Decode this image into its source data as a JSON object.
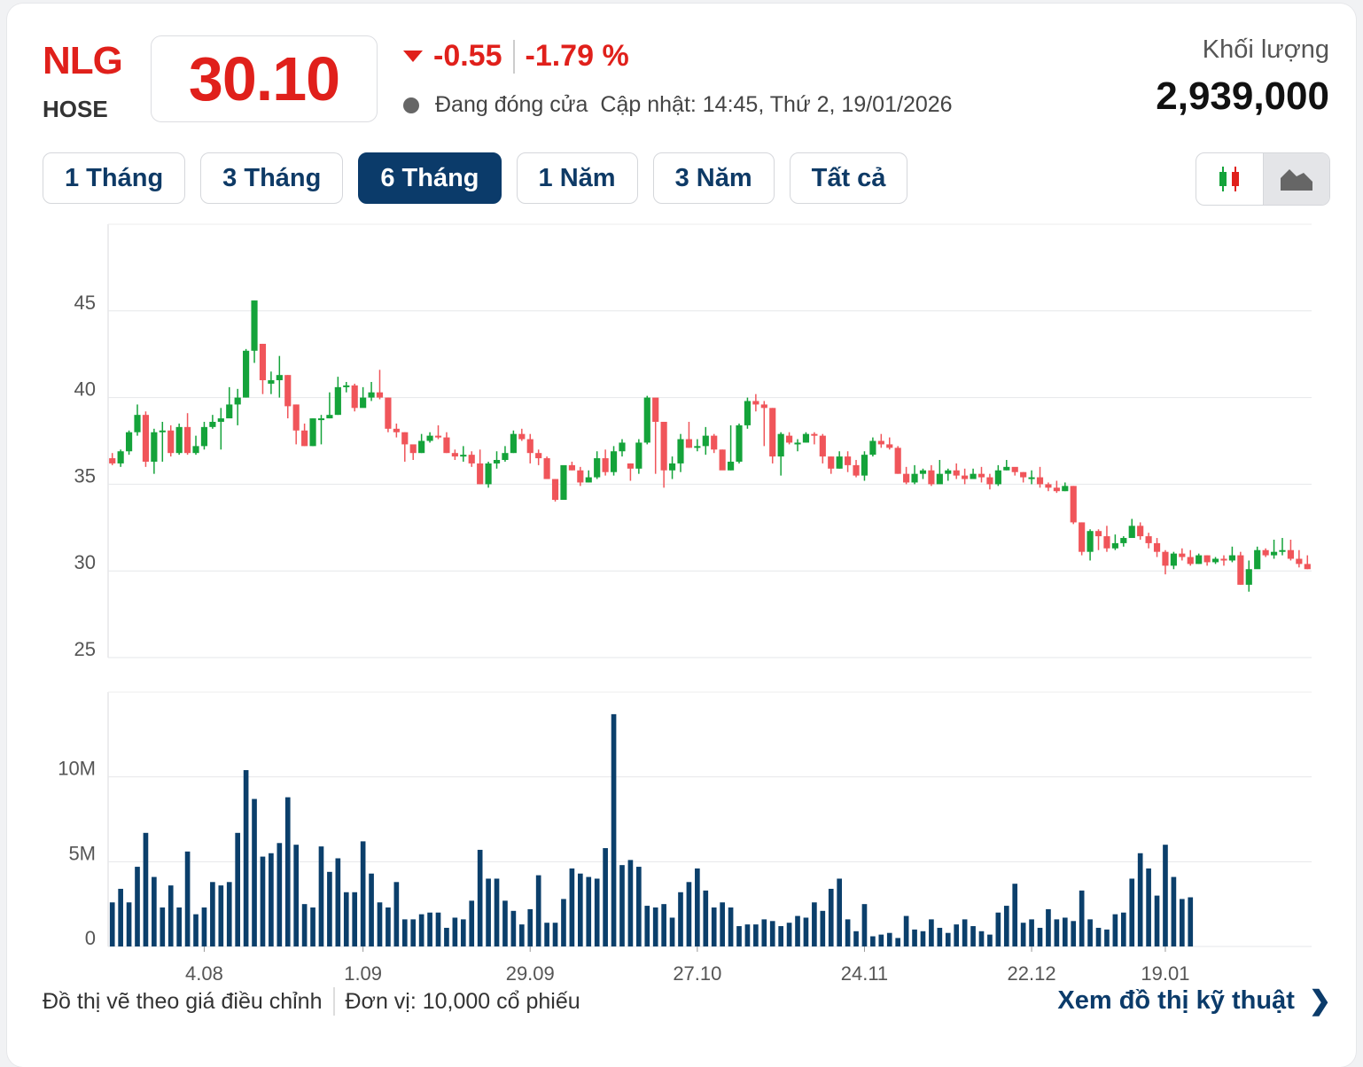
{
  "header": {
    "ticker": "NLG",
    "exchange": "HOSE",
    "price": "30.10",
    "change": "-0.55",
    "change_pct": "-1.79 %",
    "status": "Đang đóng cửa",
    "updated": "Cập nhật: 14:45, Thứ 2, 19/01/2026",
    "volume_label": "Khối lượng",
    "volume_value": "2,939,000"
  },
  "tabs": [
    {
      "label": "1 Tháng",
      "active": false
    },
    {
      "label": "3 Tháng",
      "active": false
    },
    {
      "label": "6 Tháng",
      "active": true
    },
    {
      "label": "1 Năm",
      "active": false
    },
    {
      "label": "3 Năm",
      "active": false
    },
    {
      "label": "Tất cả",
      "active": false
    }
  ],
  "toggle": {
    "candle_icon": "candlestick-icon",
    "area_icon": "area-chart-icon",
    "active": "area"
  },
  "footer": {
    "note": "Đồ thị vẽ theo giá điều chỉnh",
    "unit": "Đơn vị: 10,000 cổ phiếu",
    "tech_link": "Xem đồ thị kỹ thuật"
  },
  "colors": {
    "up": "#14a33a",
    "down": "#f0555a",
    "volume": "#0b3f6b",
    "accent": "#e0201b",
    "nav": "#0b3b6a"
  },
  "chart_data": [
    {
      "type": "candlestick",
      "yticks": [
        "45",
        "40",
        "35",
        "30",
        "25"
      ],
      "ylim": [
        25,
        50
      ],
      "xticks": [
        {
          "label": "4.08",
          "index": 11
        },
        {
          "label": "1.09",
          "index": 30
        },
        {
          "label": "29.09",
          "index": 50
        },
        {
          "label": "27.10",
          "index": 70
        },
        {
          "label": "24.11",
          "index": 90
        },
        {
          "label": "22.12",
          "index": 110
        },
        {
          "label": "19.01",
          "index": 126
        }
      ],
      "candles": [
        [
          36.5,
          36.2,
          36.8,
          36.1
        ],
        [
          36.2,
          36.9,
          37.0,
          36.0
        ],
        [
          36.9,
          38.0,
          38.1,
          36.7
        ],
        [
          38.0,
          39.0,
          39.6,
          37.8
        ],
        [
          39.0,
          36.3,
          39.2,
          36.0
        ],
        [
          36.3,
          38.0,
          38.2,
          35.6
        ],
        [
          38.0,
          38.1,
          38.6,
          36.3
        ],
        [
          38.1,
          36.8,
          38.4,
          36.6
        ],
        [
          36.8,
          38.3,
          38.5,
          36.7
        ],
        [
          38.3,
          36.8,
          39.1,
          36.7
        ],
        [
          36.8,
          37.2,
          37.8,
          36.7
        ],
        [
          37.2,
          38.3,
          38.6,
          37.0
        ],
        [
          38.3,
          38.6,
          39.0,
          38.2
        ],
        [
          38.6,
          38.8,
          39.4,
          37.0
        ],
        [
          38.8,
          39.6,
          40.6,
          39.2
        ],
        [
          39.6,
          40.0,
          40.5,
          38.4
        ],
        [
          40.0,
          42.7,
          42.8,
          40.0
        ],
        [
          42.7,
          45.6,
          45.6,
          42.0
        ],
        [
          43.1,
          41.0,
          43.1,
          40.2
        ],
        [
          40.8,
          41.0,
          41.5,
          40.2
        ],
        [
          41.0,
          41.3,
          42.4,
          40.0
        ],
        [
          41.3,
          39.5,
          41.3,
          38.8
        ],
        [
          39.6,
          38.1,
          39.6,
          37.3
        ],
        [
          38.1,
          37.2,
          38.5,
          37.2
        ],
        [
          37.2,
          38.8,
          38.8,
          37.2
        ],
        [
          38.8,
          38.8,
          39.0,
          37.3
        ],
        [
          38.8,
          39.0,
          40.3,
          38.8
        ],
        [
          39.0,
          40.6,
          41.2,
          39.0
        ],
        [
          40.6,
          40.7,
          40.9,
          40.3
        ],
        [
          40.7,
          39.4,
          40.8,
          39.2
        ],
        [
          39.4,
          40.0,
          40.6,
          39.6
        ],
        [
          40.0,
          40.3,
          40.9,
          39.8
        ],
        [
          40.3,
          40.0,
          41.6,
          39.9
        ],
        [
          40.0,
          38.2,
          40.0,
          38.0
        ],
        [
          38.2,
          38.0,
          38.5,
          37.7
        ],
        [
          38.0,
          37.3,
          38.0,
          36.3
        ],
        [
          37.3,
          36.8,
          37.2,
          36.4
        ],
        [
          36.8,
          37.5,
          37.9,
          36.8
        ],
        [
          37.5,
          37.8,
          38.0,
          37.4
        ],
        [
          37.8,
          37.7,
          38.4,
          37.6
        ],
        [
          37.7,
          36.8,
          38.0,
          36.8
        ],
        [
          36.8,
          36.6,
          37.0,
          36.4
        ],
        [
          36.6,
          36.7,
          37.2,
          36.3
        ],
        [
          36.7,
          36.2,
          36.9,
          36.0
        ],
        [
          36.2,
          35.0,
          37.0,
          35.0
        ],
        [
          35.0,
          36.2,
          36.3,
          34.8
        ],
        [
          36.2,
          36.4,
          36.9,
          35.9
        ],
        [
          36.4,
          36.8,
          37.2,
          36.3
        ],
        [
          36.8,
          37.9,
          38.1,
          36.8
        ],
        [
          37.9,
          37.6,
          38.2,
          37.5
        ],
        [
          37.6,
          36.8,
          37.9,
          36.2
        ],
        [
          36.8,
          36.5,
          37.0,
          36.1
        ],
        [
          36.5,
          35.3,
          36.6,
          35.3
        ],
        [
          35.3,
          34.1,
          35.3,
          34.0
        ],
        [
          34.1,
          36.1,
          36.0,
          34.1
        ],
        [
          36.1,
          35.8,
          36.3,
          35.8
        ],
        [
          35.8,
          35.1,
          36.0,
          34.9
        ],
        [
          35.1,
          35.4,
          35.8,
          35.1
        ],
        [
          35.4,
          36.5,
          36.9,
          35.3
        ],
        [
          36.5,
          35.7,
          37.0,
          35.5
        ],
        [
          35.7,
          36.9,
          37.2,
          35.5
        ],
        [
          36.9,
          37.4,
          37.6,
          36.6
        ],
        [
          36.2,
          35.9,
          36.2,
          35.2
        ],
        [
          35.9,
          37.4,
          37.6,
          35.6
        ],
        [
          37.4,
          40.0,
          40.1,
          37.3
        ],
        [
          40.0,
          38.6,
          38.9,
          35.6
        ],
        [
          38.6,
          35.8,
          38.6,
          34.8
        ],
        [
          35.8,
          36.2,
          36.6,
          35.3
        ],
        [
          36.2,
          37.6,
          37.9,
          35.7
        ],
        [
          37.6,
          37.1,
          38.6,
          37.1
        ],
        [
          37.1,
          37.2,
          37.6,
          36.9
        ],
        [
          37.2,
          37.8,
          38.3,
          36.7
        ],
        [
          37.8,
          37.0,
          37.9,
          36.8
        ],
        [
          37.0,
          35.8,
          37.0,
          35.9
        ],
        [
          35.8,
          36.3,
          38.4,
          35.8
        ],
        [
          36.3,
          38.4,
          38.5,
          36.2
        ],
        [
          38.4,
          39.8,
          40.0,
          38.2
        ],
        [
          39.8,
          39.6,
          40.2,
          39.2
        ],
        [
          39.6,
          39.4,
          39.8,
          37.2
        ],
        [
          39.4,
          36.6,
          39.4,
          36.2
        ],
        [
          36.6,
          37.9,
          38.0,
          35.5
        ],
        [
          37.8,
          37.4,
          38.0,
          37.3
        ],
        [
          37.4,
          37.4,
          37.6,
          36.9
        ],
        [
          37.4,
          37.9,
          38.0,
          37.4
        ],
        [
          37.9,
          37.8,
          38.0,
          37.3
        ],
        [
          37.8,
          36.6,
          37.9,
          36.2
        ],
        [
          36.6,
          35.9,
          36.6,
          35.6
        ],
        [
          35.9,
          36.6,
          36.9,
          35.9
        ],
        [
          36.6,
          36.1,
          36.9,
          35.7
        ],
        [
          36.1,
          35.5,
          36.4,
          35.4
        ],
        [
          35.5,
          36.7,
          36.9,
          35.2
        ],
        [
          36.7,
          37.5,
          37.7,
          36.6
        ],
        [
          37.5,
          37.3,
          37.9,
          37.1
        ],
        [
          37.3,
          37.1,
          37.7,
          37.0
        ],
        [
          37.1,
          35.6,
          37.2,
          35.6
        ],
        [
          35.6,
          35.1,
          36.0,
          35.0
        ],
        [
          35.1,
          35.6,
          36.1,
          35.0
        ],
        [
          35.6,
          35.8,
          35.9,
          35.3
        ],
        [
          35.8,
          35.0,
          36.1,
          34.9
        ],
        [
          35.0,
          35.6,
          36.4,
          35.3
        ],
        [
          35.6,
          35.8,
          35.9,
          35.2
        ],
        [
          35.8,
          35.5,
          36.2,
          35.3
        ],
        [
          35.5,
          35.3,
          35.9,
          35.0
        ],
        [
          35.3,
          35.6,
          35.9,
          35.4
        ],
        [
          35.6,
          35.4,
          36.0,
          35.1
        ],
        [
          35.4,
          35.0,
          35.6,
          34.7
        ],
        [
          35.0,
          35.8,
          36.1,
          34.9
        ],
        [
          35.8,
          36.0,
          36.4,
          35.8
        ],
        [
          36.0,
          35.7,
          35.9,
          35.5
        ],
        [
          35.7,
          35.4,
          35.7,
          35.1
        ],
        [
          35.4,
          35.4,
          35.8,
          35.0
        ],
        [
          35.4,
          35.0,
          36.0,
          34.8
        ],
        [
          35.0,
          34.8,
          35.1,
          34.6
        ],
        [
          34.8,
          34.6,
          35.2,
          34.5
        ],
        [
          34.6,
          34.9,
          35.1,
          34.6
        ],
        [
          34.9,
          32.8,
          34.9,
          32.7
        ],
        [
          32.8,
          31.1,
          32.8,
          30.9
        ],
        [
          31.1,
          32.3,
          32.4,
          30.6
        ],
        [
          32.3,
          32.0,
          32.4,
          31.2
        ],
        [
          32.0,
          31.3,
          32.6,
          31.1
        ],
        [
          31.3,
          31.6,
          32.1,
          31.2
        ],
        [
          31.6,
          31.9,
          32.0,
          31.4
        ],
        [
          31.9,
          32.6,
          33.0,
          32.1
        ],
        [
          32.6,
          32.0,
          32.8,
          31.8
        ],
        [
          32.0,
          31.6,
          32.2,
          31.3
        ],
        [
          31.6,
          31.1,
          31.9,
          30.8
        ],
        [
          31.1,
          30.3,
          31.2,
          29.8
        ],
        [
          30.3,
          31.0,
          31.1,
          30.1
        ],
        [
          31.0,
          30.8,
          31.3,
          30.6
        ],
        [
          30.8,
          30.4,
          31.2,
          30.3
        ],
        [
          30.4,
          30.9,
          31.0,
          30.4
        ],
        [
          30.9,
          30.5,
          30.9,
          30.3
        ],
        [
          30.5,
          30.7,
          30.8,
          30.4
        ],
        [
          30.7,
          30.6,
          30.9,
          30.3
        ],
        [
          30.6,
          30.9,
          31.4,
          30.5
        ],
        [
          30.9,
          29.2,
          31.1,
          29.2
        ],
        [
          29.2,
          30.1,
          30.6,
          28.8
        ],
        [
          30.1,
          31.2,
          31.4,
          30.9
        ],
        [
          31.2,
          30.9,
          31.3,
          30.8
        ],
        [
          30.9,
          31.1,
          31.8,
          30.7
        ],
        [
          31.1,
          31.2,
          31.9,
          30.9
        ],
        [
          31.2,
          30.7,
          31.8,
          30.6
        ],
        [
          30.7,
          30.4,
          31.2,
          30.2
        ],
        [
          30.4,
          30.1,
          30.9,
          30.1
        ]
      ]
    },
    {
      "type": "bar",
      "yticks": [
        "10M",
        "5M",
        "0"
      ],
      "ylim": [
        0,
        15
      ],
      "values": [
        2.6,
        3.4,
        2.6,
        4.7,
        6.7,
        4.1,
        2.3,
        3.6,
        2.3,
        5.6,
        1.9,
        2.3,
        3.8,
        3.6,
        3.8,
        6.7,
        10.4,
        8.7,
        5.3,
        5.5,
        6.1,
        8.8,
        6.0,
        2.5,
        2.3,
        5.9,
        4.4,
        5.2,
        3.2,
        3.2,
        6.2,
        4.3,
        2.6,
        2.3,
        3.8,
        1.6,
        1.6,
        1.9,
        2.0,
        2.0,
        1.1,
        1.7,
        1.6,
        2.7,
        5.7,
        4.0,
        4.0,
        2.7,
        2.1,
        1.3,
        2.2,
        4.2,
        1.4,
        1.4,
        2.8,
        4.6,
        4.3,
        4.1,
        4.0,
        5.8,
        13.7,
        4.8,
        5.1,
        4.7,
        2.4,
        2.3,
        2.5,
        1.7,
        3.2,
        3.8,
        4.6,
        3.3,
        2.3,
        2.6,
        2.3,
        1.2,
        1.3,
        1.3,
        1.6,
        1.5,
        1.2,
        1.4,
        1.8,
        1.7,
        2.6,
        2.1,
        3.4,
        4.0,
        1.6,
        0.9,
        2.5,
        0.6,
        0.7,
        0.8,
        0.5,
        1.8,
        1.0,
        0.9,
        1.6,
        1.1,
        0.8,
        1.3,
        1.6,
        1.2,
        0.9,
        0.7,
        2.0,
        2.4,
        3.7,
        1.4,
        1.6,
        1.1,
        2.2,
        1.6,
        1.7,
        1.5,
        3.3,
        1.6,
        1.1,
        1.0,
        1.9,
        2.0,
        4.0,
        5.5,
        4.6,
        3.0,
        6.0,
        4.1,
        2.8,
        2.9
      ]
    }
  ]
}
